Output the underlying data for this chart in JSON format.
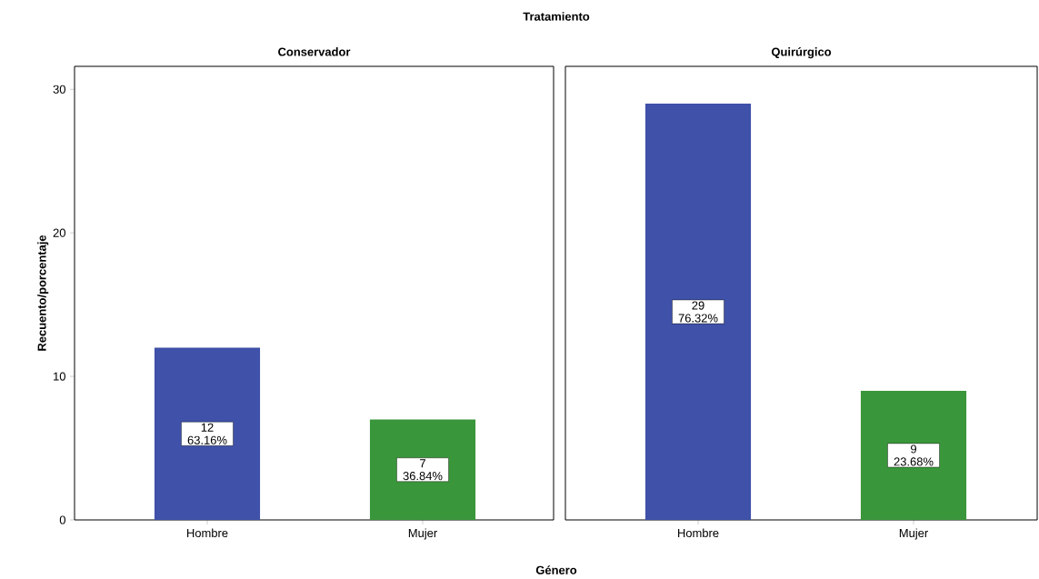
{
  "chart_data": [
    {
      "type": "bar",
      "title": "Conservador",
      "xlabel": "Género",
      "ylabel": "Recuento/porcentaje",
      "annotations": [
        "Tratamiento"
      ],
      "categories": [
        "Hombre",
        "Mujer"
      ],
      "values": [
        12,
        7
      ],
      "colors": [
        "#3f51a8",
        "#3a963a"
      ],
      "value_labels": [
        "12 63.16%",
        "7 36.84%"
      ],
      "ylim": [
        0,
        31.6
      ],
      "yticks": [
        0,
        10,
        20,
        30
      ]
    },
    {
      "type": "bar",
      "title": "Quirúrgico",
      "categories": [
        "Hombre",
        "Mujer"
      ],
      "values": [
        29,
        9
      ],
      "colors": [
        "#3f51a8",
        "#3a963a"
      ],
      "value_labels": [
        "29 76.32%",
        "9 23.68%"
      ],
      "ylim": [
        0,
        31.6
      ],
      "yticks": [
        0,
        10,
        20,
        30
      ],
      "tick_labels": "x"
    }
  ]
}
